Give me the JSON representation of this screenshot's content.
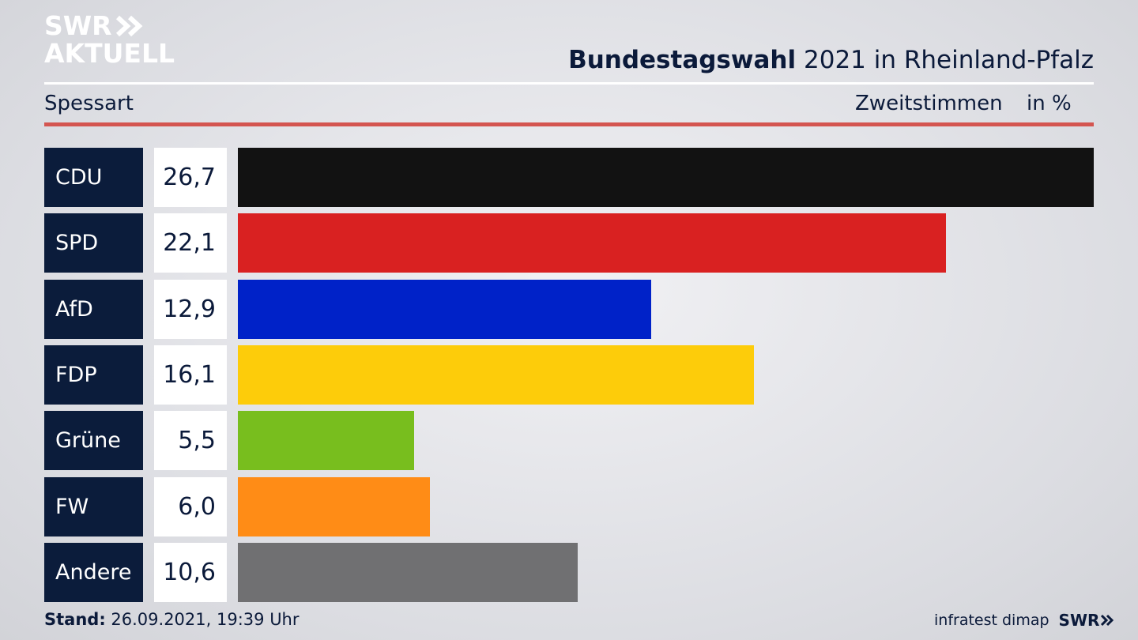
{
  "brand": {
    "line1": "SWR",
    "line2": "AKTUELL"
  },
  "header": {
    "title_bold": "Bundestagswahl",
    "title_rest": "2021 in Rheinland-Pfalz",
    "region": "Spessart",
    "metric": "Zweitstimmen",
    "unit": "in %"
  },
  "footer": {
    "stand_label": "Stand:",
    "stand_value": "26.09.2021, 19:39 Uhr",
    "source": "infratest dimap",
    "source_brand": "SWR"
  },
  "chart_data": {
    "type": "bar",
    "orientation": "horizontal",
    "categories": [
      "CDU",
      "SPD",
      "AfD",
      "FDP",
      "Grüne",
      "FW",
      "Andere"
    ],
    "values": [
      26.7,
      22.1,
      12.9,
      16.1,
      5.5,
      6.0,
      10.6
    ],
    "value_labels": [
      "26,7",
      "22,1",
      "12,9",
      "16,1",
      "5,5",
      "6,0",
      "10,6"
    ],
    "colors": [
      "#121212",
      "#d92121",
      "#0022c8",
      "#fdcc0a",
      "#78be1e",
      "#ff8c16",
      "#707072"
    ],
    "xlim": [
      0,
      26.7
    ],
    "title": "",
    "xlabel": "",
    "ylabel": ""
  }
}
